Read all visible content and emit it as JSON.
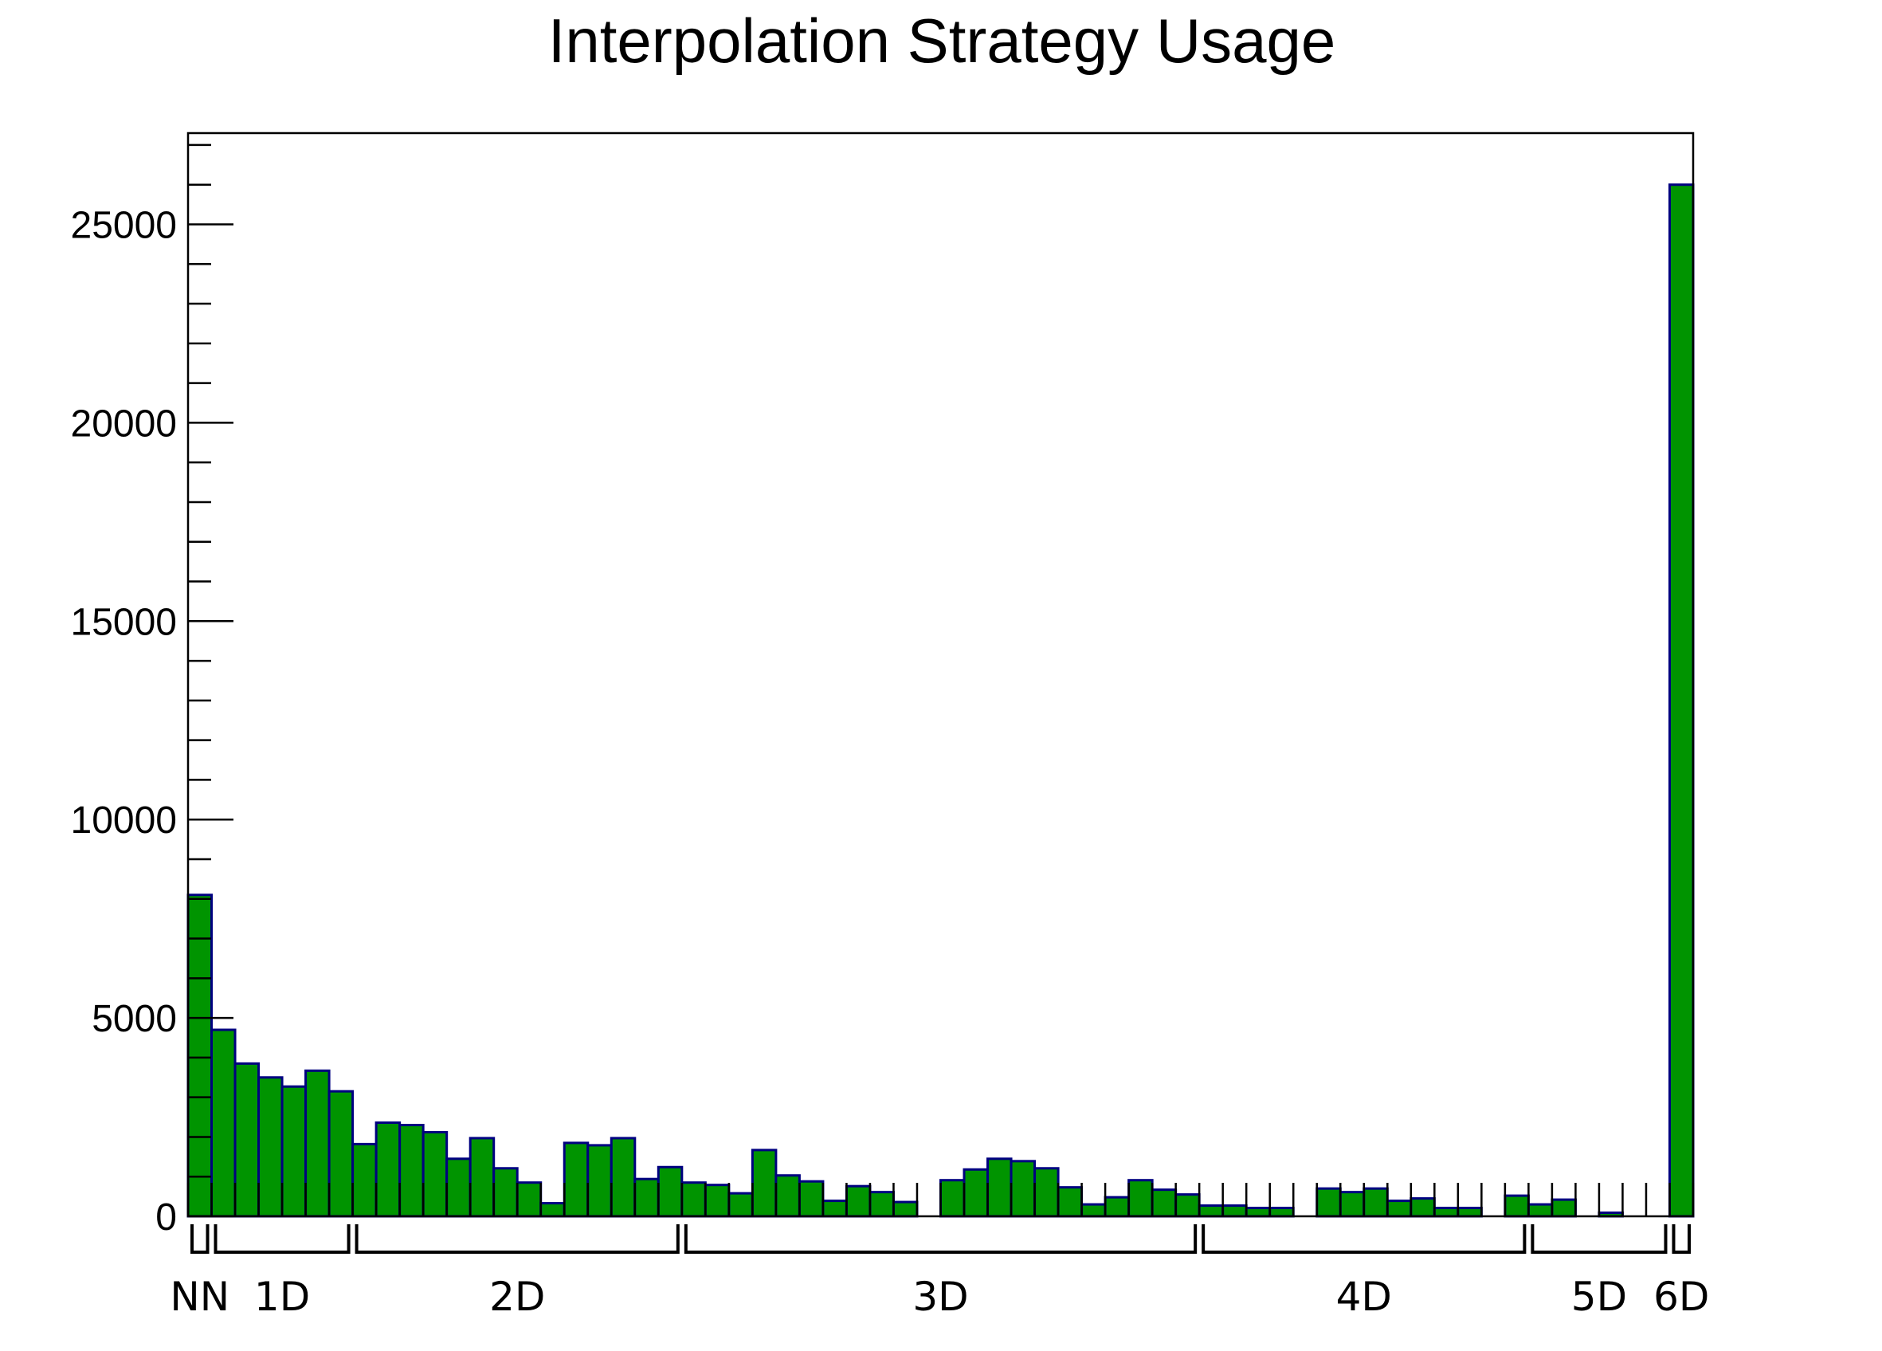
{
  "chart_data": {
    "type": "histogram",
    "title": "Interpolation Strategy Usage",
    "bins": [
      0,
      1,
      2,
      3,
      4,
      5,
      6,
      7,
      8,
      9,
      10,
      11,
      12,
      13,
      14,
      15,
      16,
      17,
      18,
      19,
      20,
      21,
      22,
      23,
      24,
      25,
      26,
      27,
      28,
      29,
      30,
      31,
      32,
      33,
      34,
      35,
      36,
      37,
      38,
      39,
      40,
      41,
      42,
      43,
      44,
      45,
      46,
      47,
      48,
      49,
      50,
      51,
      52,
      53,
      54,
      55,
      56,
      57,
      58,
      59,
      60,
      61,
      62,
      63,
      64
    ],
    "values": [
      8100,
      4700,
      3850,
      3500,
      3270,
      3670,
      3150,
      1820,
      2360,
      2300,
      2120,
      1450,
      1970,
      1210,
      850,
      330,
      1850,
      1790,
      1970,
      940,
      1240,
      850,
      790,
      580,
      1670,
      1030,
      880,
      390,
      760,
      610,
      360,
      0,
      910,
      1180,
      1450,
      1390,
      1210,
      730,
      300,
      480,
      910,
      670,
      550,
      270,
      270,
      210,
      210,
      0,
      700,
      610,
      700,
      390,
      450,
      210,
      210,
      0,
      520,
      300,
      420,
      0,
      90,
      0,
      0,
      26000
    ],
    "color": "#009400",
    "edge_color": "#000080",
    "groups": [
      {
        "label": "NN",
        "range": [
          0,
          1
        ]
      },
      {
        "label": "1D",
        "range": [
          1,
          7
        ]
      },
      {
        "label": "2D",
        "range": [
          7,
          21
        ]
      },
      {
        "label": "3D",
        "range": [
          21,
          43
        ]
      },
      {
        "label": "4D",
        "range": [
          43,
          57
        ]
      },
      {
        "label": "5D",
        "range": [
          57,
          63
        ]
      },
      {
        "label": "6D",
        "range": [
          63,
          64
        ]
      }
    ],
    "xlim": [
      0,
      64
    ],
    "ylim": [
      0,
      27300
    ],
    "yticks": [
      0,
      5000,
      10000,
      15000,
      20000,
      25000
    ],
    "yminorticks": [
      1000,
      2000,
      3000,
      4000,
      6000,
      7000,
      8000,
      9000,
      11000,
      12000,
      13000,
      14000,
      16000,
      17000,
      18000,
      19000,
      21000,
      22000,
      23000,
      24000,
      26000,
      27000
    ]
  }
}
